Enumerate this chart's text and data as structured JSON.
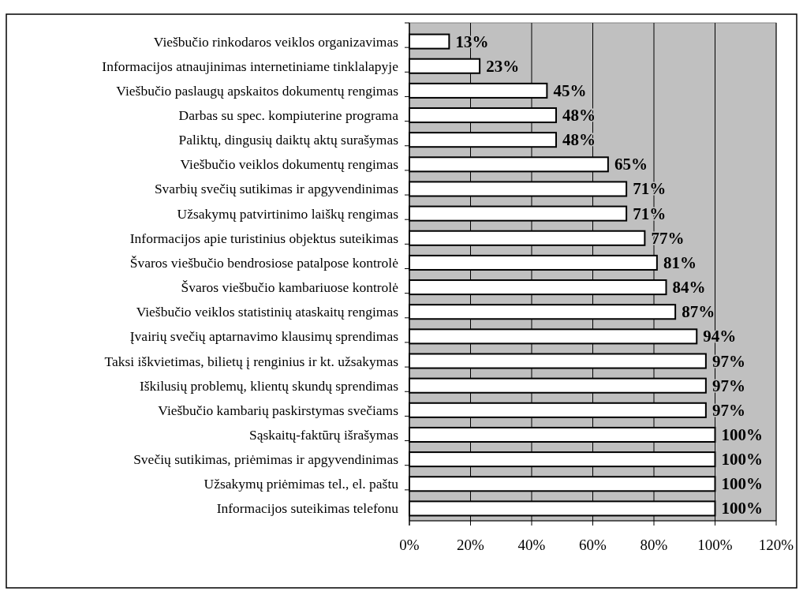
{
  "chart_data": {
    "type": "bar",
    "orientation": "horizontal",
    "categories": [
      "Viešbučio rinkodaros veiklos organizavimas",
      "Informacijos atnaujinimas internetiniame tinklalapyje",
      "Viešbučio paslaugų apskaitos dokumentų rengimas",
      "Darbas su spec. kompiuterine programa",
      "Paliktų, dingusių daiktų aktų surašymas",
      "Viešbučio veiklos dokumentų rengimas",
      "Svarbių svečių sutikimas ir apgyvendinimas",
      "Užsakymų patvirtinimo laiškų rengimas",
      "Informacijos apie turistinius objektus suteikimas",
      "Švaros viešbučio bendrosiose patalpose kontrolė",
      "Švaros viešbučio kambariuose kontrolė",
      "Viešbučio veiklos statistinių ataskaitų rengimas",
      "Įvairių svečių aptarnavimo klausimų sprendimas",
      "Taksi iškvietimas, bilietų į renginius ir kt. užsakymas",
      "Iškilusių problemų, klientų skundų sprendimas",
      "Viešbučio kambarių paskirstymas svečiams",
      "Sąskaitų-faktūrų išrašymas",
      "Svečių sutikimas, priėmimas ir apgyvendinimas",
      "Užsakymų priėmimas tel., el. paštu",
      "Informacijos suteikimas telefonu"
    ],
    "values": [
      13,
      23,
      45,
      48,
      48,
      65,
      71,
      71,
      77,
      81,
      84,
      87,
      94,
      97,
      97,
      97,
      100,
      100,
      100,
      100
    ],
    "value_labels": [
      "13%",
      "23%",
      "45%",
      "48%",
      "48%",
      "65%",
      "71%",
      "71%",
      "77%",
      "81%",
      "84%",
      "87%",
      "94%",
      "97%",
      "97%",
      "97%",
      "100%",
      "100%",
      "100%",
      "100%"
    ],
    "color": "#ffffff",
    "xlim": [
      0,
      120
    ],
    "xticks": [
      {
        "value": 0,
        "label": "0%"
      },
      {
        "value": 20,
        "label": "20%"
      },
      {
        "value": 40,
        "label": "40%"
      },
      {
        "value": 60,
        "label": "60%"
      },
      {
        "value": 80,
        "label": "80%"
      },
      {
        "value": 100,
        "label": "100%"
      },
      {
        "value": 120,
        "label": "120%"
      }
    ],
    "grid": "x"
  }
}
